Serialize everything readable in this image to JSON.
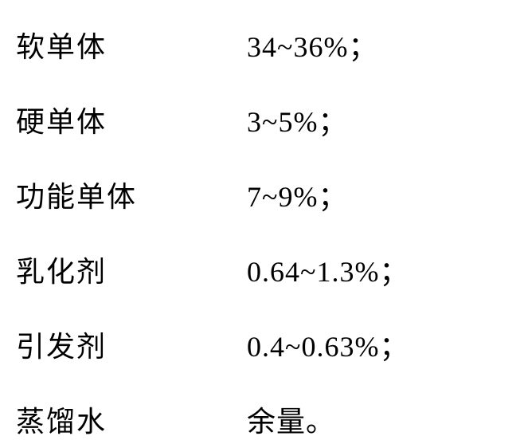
{
  "composition": {
    "rows": [
      {
        "label": "软单体",
        "value": "34~36%；"
      },
      {
        "label": "硬单体",
        "value": "3~5%；"
      },
      {
        "label": "功能单体",
        "value": "7~9%；"
      },
      {
        "label": "乳化剂",
        "value": "0.64~1.3%；"
      },
      {
        "label": "引发剂",
        "value": "0.4~0.63%；"
      },
      {
        "label": "蒸馏水",
        "value": "余量。"
      }
    ]
  },
  "styling": {
    "background_color": "#ffffff",
    "text_color": "#000000",
    "font_size": 36,
    "label_width": 290,
    "row_gap": 42,
    "font_family": "SimSun"
  }
}
